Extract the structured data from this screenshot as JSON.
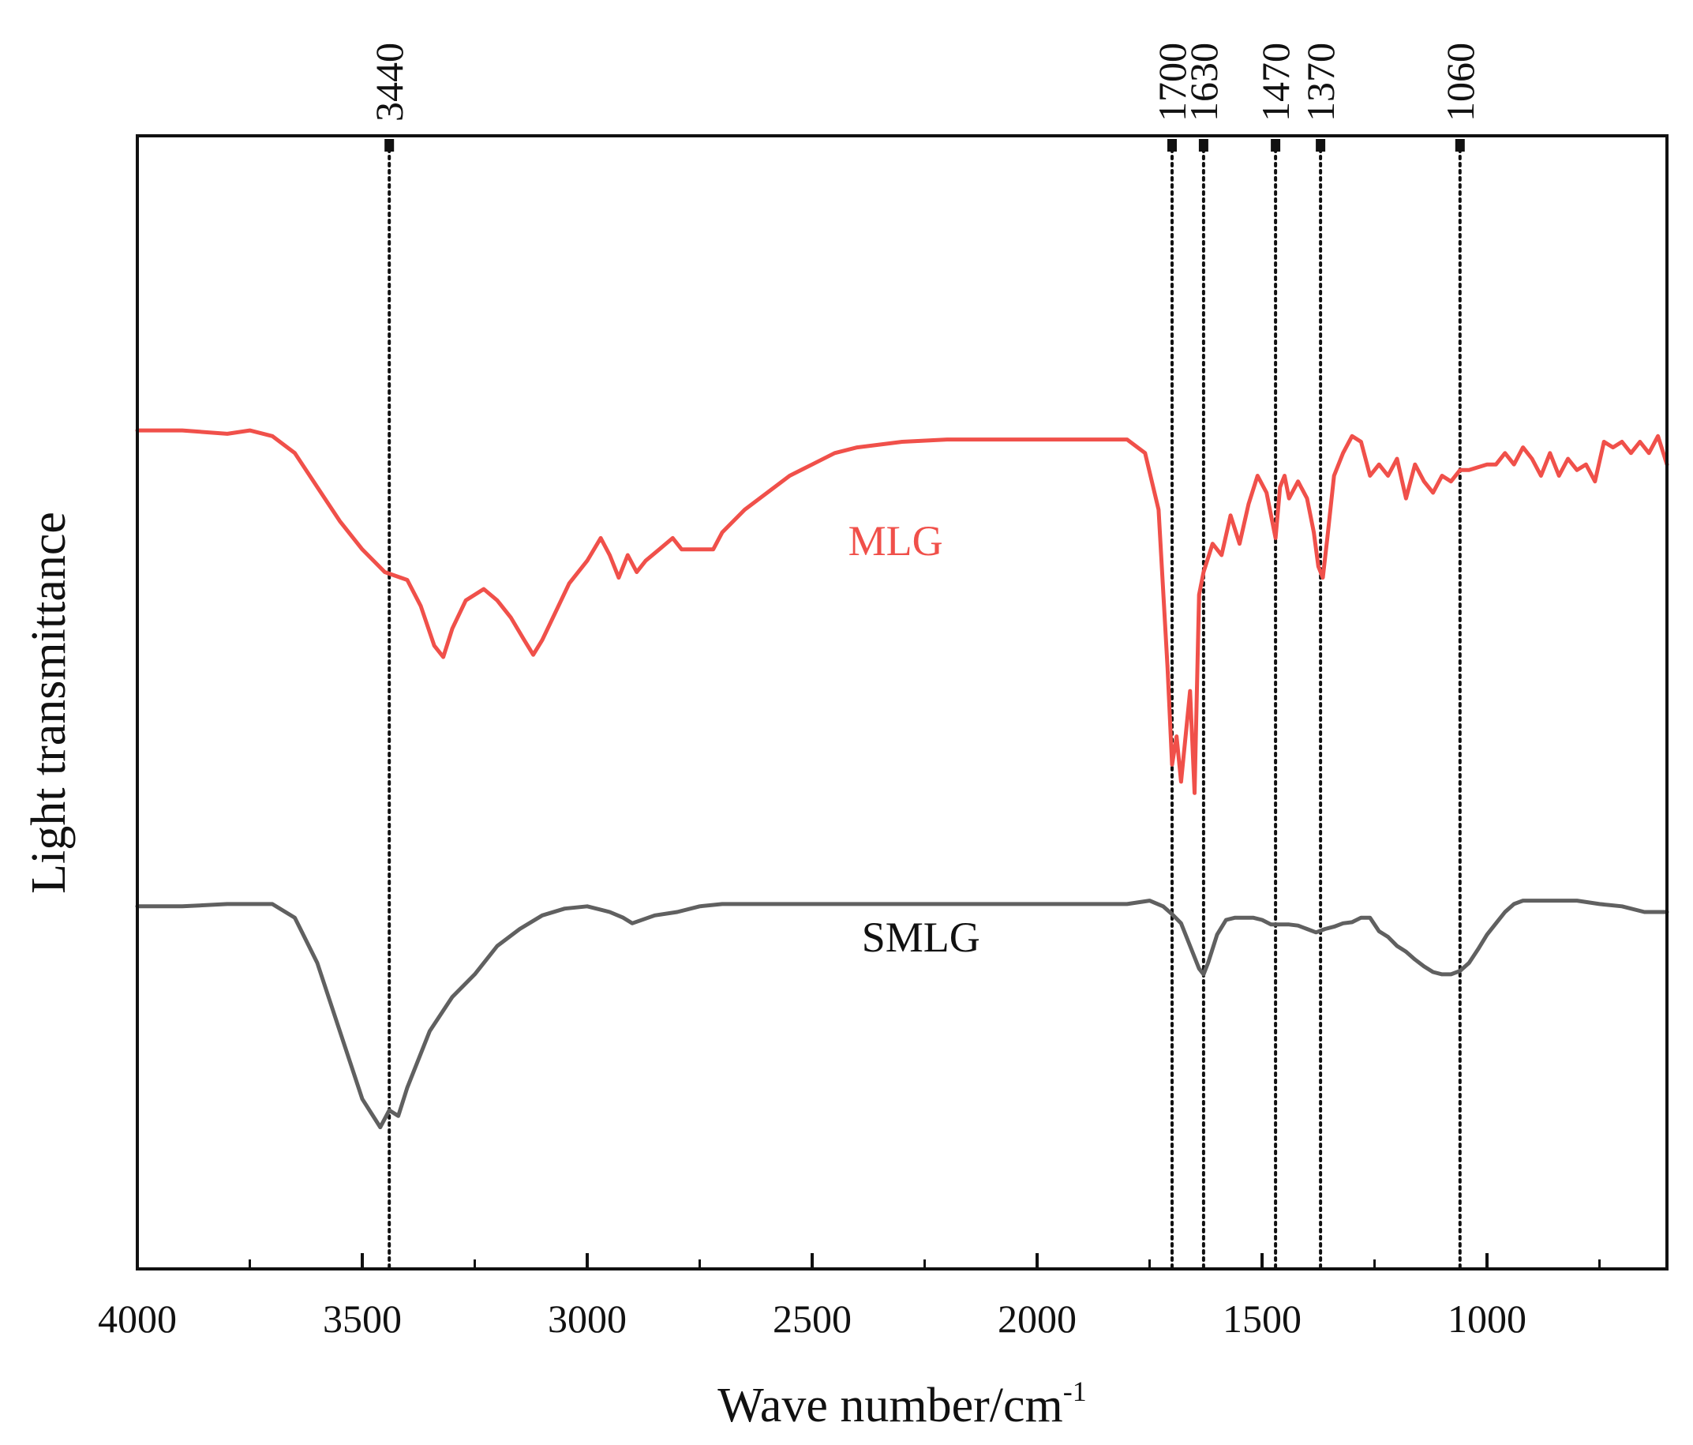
{
  "chart_data": {
    "type": "line",
    "title": "",
    "xlabel": "Wave number/cm",
    "xlabel_sup": "-1",
    "ylabel": "Light transmittance",
    "xlim": [
      4000,
      600
    ],
    "ylim": [
      0,
      100
    ],
    "x_ticks": [
      4000,
      3500,
      3000,
      2500,
      2000,
      1500,
      1000
    ],
    "x_tick_labels": [
      "4000",
      "3500",
      "3000",
      "2500",
      "2000",
      "1500",
      "1000"
    ],
    "x_minor_ticks": [
      3750,
      3250,
      2750,
      2250,
      1750,
      1250,
      750
    ],
    "grid": false,
    "peak_markers": [
      {
        "label": "3440",
        "x": 3440
      },
      {
        "label": "1700",
        "x": 1700
      },
      {
        "label": "1630",
        "x": 1630
      },
      {
        "label": "1470",
        "x": 1470
      },
      {
        "label": "1370",
        "x": 1370
      },
      {
        "label": "1060",
        "x": 1060
      }
    ],
    "series": [
      {
        "name": "MLG",
        "label_x": 2420,
        "label_y": 63,
        "color": "#f0504a",
        "x": [
          4000,
          3900,
          3800,
          3750,
          3700,
          3650,
          3600,
          3550,
          3500,
          3450,
          3400,
          3370,
          3340,
          3320,
          3300,
          3270,
          3230,
          3200,
          3170,
          3140,
          3120,
          3100,
          3070,
          3040,
          3000,
          2970,
          2950,
          2930,
          2910,
          2890,
          2870,
          2840,
          2810,
          2790,
          2750,
          2720,
          2700,
          2650,
          2600,
          2550,
          2500,
          2450,
          2400,
          2300,
          2200,
          2000,
          1900,
          1800,
          1760,
          1730,
          1710,
          1700,
          1690,
          1680,
          1670,
          1660,
          1650,
          1640,
          1630,
          1610,
          1590,
          1570,
          1550,
          1530,
          1510,
          1490,
          1470,
          1460,
          1450,
          1440,
          1420,
          1400,
          1385,
          1375,
          1365,
          1355,
          1340,
          1320,
          1300,
          1280,
          1260,
          1240,
          1220,
          1200,
          1180,
          1160,
          1140,
          1120,
          1100,
          1080,
          1060,
          1040,
          1000,
          980,
          960,
          940,
          920,
          900,
          880,
          860,
          840,
          820,
          800,
          780,
          760,
          740,
          720,
          700,
          680,
          660,
          640,
          620,
          600
        ],
        "y": [
          74,
          74,
          73.7,
          74,
          73.5,
          72,
          69,
          66,
          63.5,
          61.5,
          60.8,
          58.5,
          55,
          54,
          56.5,
          59,
          60,
          59,
          57.5,
          55.5,
          54.2,
          55.5,
          58,
          60.5,
          62.5,
          64.5,
          63,
          61,
          63,
          61.5,
          62.5,
          63.5,
          64.5,
          63.5,
          63.5,
          63.5,
          65,
          67,
          68.5,
          70,
          71,
          72,
          72.5,
          73,
          73.2,
          73.2,
          73.2,
          73.2,
          72,
          67,
          53,
          44.5,
          47,
          43,
          47,
          51,
          42,
          59.5,
          61.5,
          64,
          63,
          66.5,
          64,
          67.5,
          70,
          68.5,
          64.5,
          69,
          70,
          68,
          69.5,
          68,
          65,
          62,
          61,
          64.5,
          70,
          72,
          73.5,
          73,
          70,
          71,
          70,
          71.5,
          68,
          71,
          69.5,
          68.5,
          70,
          69.5,
          70.5,
          70.5,
          71,
          71,
          72,
          71,
          72.5,
          71.5,
          70,
          72,
          70,
          71.5,
          70.5,
          71,
          69.5,
          73,
          72.5,
          73,
          72,
          73,
          72,
          73.5,
          71
        ]
      },
      {
        "name": "SMLG",
        "label_x": 2390,
        "label_y": 28,
        "color": "#606060",
        "x": [
          4000,
          3900,
          3800,
          3750,
          3700,
          3650,
          3600,
          3550,
          3500,
          3460,
          3440,
          3420,
          3400,
          3350,
          3300,
          3250,
          3200,
          3150,
          3100,
          3050,
          3000,
          2950,
          2920,
          2900,
          2850,
          2800,
          2750,
          2700,
          2600,
          2500,
          2400,
          2300,
          2200,
          2100,
          2000,
          1900,
          1800,
          1750,
          1720,
          1700,
          1680,
          1660,
          1640,
          1630,
          1620,
          1600,
          1580,
          1560,
          1540,
          1520,
          1500,
          1480,
          1460,
          1440,
          1420,
          1400,
          1380,
          1360,
          1340,
          1320,
          1300,
          1280,
          1260,
          1240,
          1220,
          1200,
          1180,
          1160,
          1140,
          1120,
          1100,
          1080,
          1060,
          1040,
          1020,
          1000,
          980,
          960,
          940,
          920,
          900,
          850,
          800,
          750,
          700,
          650,
          600
        ],
        "y": [
          32,
          32,
          32.2,
          32.2,
          32.2,
          31,
          27,
          21,
          15,
          12.5,
          14,
          13.5,
          16,
          21,
          24,
          26,
          28.5,
          30,
          31.2,
          31.8,
          32,
          31.5,
          31,
          30.5,
          31.2,
          31.5,
          32,
          32.2,
          32.2,
          32.2,
          32.2,
          32.2,
          32.2,
          32.2,
          32.2,
          32.2,
          32.2,
          32.5,
          32,
          31.3,
          30.5,
          28.5,
          26.5,
          26,
          27,
          29.5,
          30.8,
          31,
          31,
          31,
          30.8,
          30.4,
          30.4,
          30.4,
          30.3,
          30,
          29.7,
          30,
          30.2,
          30.5,
          30.6,
          31,
          31,
          29.8,
          29.3,
          28.5,
          28,
          27.3,
          26.7,
          26.2,
          26,
          26,
          26.3,
          27,
          28.2,
          29.5,
          30.5,
          31.5,
          32.2,
          32.5,
          32.5,
          32.5,
          32.5,
          32.2,
          32,
          31.5,
          31.5
        ]
      }
    ]
  }
}
